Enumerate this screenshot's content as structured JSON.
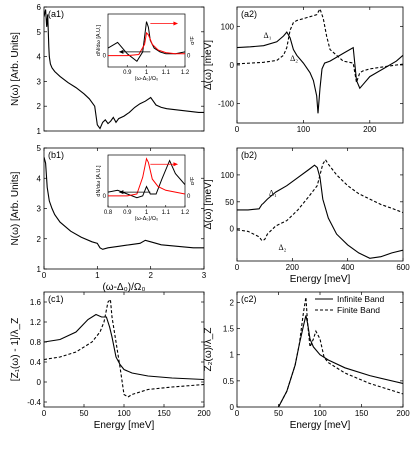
{
  "chart_data": [
    {
      "id": "a1",
      "type": "line",
      "label": "(a1)",
      "ylabel": "N(ω) [Arb. Units]",
      "xlabel": "",
      "xlim": [
        0,
        3
      ],
      "ylim": [
        1,
        6
      ],
      "xticks": [],
      "yticks": [
        1,
        2,
        3,
        4,
        5,
        6
      ],
      "series": [
        {
          "style": "solid",
          "color": "#000000",
          "x": [
            0.0,
            0.03,
            0.05,
            0.07,
            0.09,
            0.1,
            0.12,
            0.15,
            0.2,
            0.3,
            0.45,
            0.6,
            0.75,
            0.85,
            0.95,
            1.0,
            1.05,
            1.1,
            1.15,
            1.2,
            1.25,
            1.3,
            1.35,
            1.4,
            1.5,
            1.6,
            1.7,
            1.8,
            1.9,
            2.0,
            2.05,
            2.1,
            2.2,
            2.3,
            2.5,
            2.7,
            2.9,
            3.0
          ],
          "y": [
            5.6,
            5.9,
            5.2,
            5.7,
            4.4,
            4.0,
            3.7,
            3.55,
            3.4,
            3.2,
            2.95,
            2.75,
            2.5,
            2.3,
            2.0,
            1.25,
            1.1,
            1.35,
            1.45,
            1.3,
            1.4,
            1.55,
            1.35,
            1.5,
            1.6,
            1.75,
            1.95,
            2.1,
            2.2,
            2.35,
            2.2,
            2.05,
            1.95,
            1.9,
            1.85,
            1.8,
            1.75,
            1.75
          ]
        }
      ],
      "inset": {
        "xlabel": "(ω-Δ₀)/Ω₀",
        "ylabel": "dN/dω [A.U.]",
        "ylabel2": "α²F",
        "xlim": [
          0.8,
          1.2
        ],
        "xticks": [
          0.9,
          1.0,
          1.1,
          1.2
        ],
        "yticks": [
          0
        ],
        "series": [
          {
            "color": "#000000",
            "x": [
              0.8,
              0.85,
              0.9,
              0.95,
              0.98,
              1.0,
              1.01,
              1.02,
              1.04,
              1.07,
              1.1,
              1.15,
              1.2
            ],
            "y": [
              0.2,
              0.35,
              0.05,
              -0.15,
              0.1,
              0.9,
              0.75,
              0.4,
              0.2,
              0.1,
              0.05,
              0.05,
              0.1
            ]
          },
          {
            "color": "#ff0000",
            "x": [
              0.8,
              0.9,
              0.96,
              0.99,
              1.0,
              1.01,
              1.03,
              1.06,
              1.1,
              1.15,
              1.2
            ],
            "y": [
              0.0,
              0.0,
              0.03,
              0.3,
              0.6,
              0.55,
              0.3,
              0.15,
              0.08,
              0.05,
              0.05
            ]
          }
        ]
      }
    },
    {
      "id": "b1",
      "type": "line",
      "label": "(b1)",
      "ylabel": "N(ω) [Arb. Units]",
      "xlabel": "(ω-Δ₀)/Ω₀",
      "xlim": [
        0,
        3
      ],
      "ylim": [
        1,
        5
      ],
      "xticks": [
        0,
        1,
        2,
        3
      ],
      "yticks": [
        1,
        2,
        3,
        4,
        5
      ],
      "series": [
        {
          "style": "solid",
          "color": "#000000",
          "x": [
            0.0,
            0.03,
            0.06,
            0.1,
            0.15,
            0.2,
            0.3,
            0.5,
            0.7,
            0.9,
            1.0,
            1.05,
            1.1,
            1.2,
            1.4,
            1.6,
            1.8,
            1.9,
            2.0,
            2.2,
            2.5,
            2.8,
            3.0
          ],
          "y": [
            4.7,
            4.5,
            3.7,
            3.25,
            3.0,
            2.8,
            2.55,
            2.25,
            2.05,
            1.9,
            1.85,
            1.7,
            1.65,
            1.7,
            1.75,
            1.8,
            1.85,
            1.95,
            1.9,
            1.8,
            1.75,
            1.7,
            1.7
          ]
        }
      ],
      "inset": {
        "xlabel": "(ω-Δ₀)/Ω₀",
        "ylabel": "dN/dω [A.U.]",
        "ylabel2": "α²F",
        "xlim": [
          0.8,
          1.2
        ],
        "xticks": [
          0.8,
          0.9,
          1.0,
          1.1,
          1.2
        ],
        "yticks": [
          0
        ],
        "series": [
          {
            "color": "#000000",
            "x": [
              0.8,
              0.85,
              0.9,
              0.95,
              0.98,
              1.0,
              1.02,
              1.05,
              1.08,
              1.12,
              1.15,
              1.2
            ],
            "y": [
              0.1,
              0.15,
              0.05,
              -0.05,
              0.0,
              0.25,
              0.05,
              0.05,
              0.45,
              0.95,
              0.6,
              0.3
            ]
          },
          {
            "color": "#ff0000",
            "x": [
              0.8,
              0.9,
              0.95,
              0.98,
              1.0,
              1.01,
              1.03,
              1.06,
              1.1,
              1.15,
              1.2
            ],
            "y": [
              0.0,
              0.0,
              0.05,
              0.5,
              1.0,
              0.9,
              0.45,
              0.25,
              0.15,
              0.1,
              0.05
            ]
          }
        ]
      }
    },
    {
      "id": "a2",
      "type": "line",
      "label": "(a2)",
      "ylabel": "Δ(ω) [meV]",
      "xlabel": "",
      "xlim": [
        0,
        250
      ],
      "ylim": [
        -150,
        150
      ],
      "xticks": [
        0,
        100,
        200
      ],
      "yticks": [
        -100,
        0,
        100
      ],
      "annotations": [
        {
          "text": "Δ₁",
          "x": 40,
          "y": 70
        },
        {
          "text": "Δ₂",
          "x": 80,
          "y": 10
        }
      ],
      "series": [
        {
          "style": "solid",
          "color": "#000000",
          "x": [
            0,
            20,
            40,
            60,
            70,
            75,
            80,
            85,
            90,
            100,
            110,
            115,
            120,
            122,
            125,
            128,
            132,
            140,
            160,
            175,
            180,
            185,
            190,
            200,
            220,
            240,
            250
          ],
          "y": [
            45,
            47,
            50,
            60,
            75,
            85,
            70,
            40,
            25,
            5,
            -20,
            -40,
            -80,
            -125,
            -60,
            -10,
            5,
            10,
            30,
            45,
            -40,
            -60,
            -50,
            -30,
            -10,
            10,
            25
          ]
        },
        {
          "style": "dashed",
          "color": "#000000",
          "x": [
            0,
            20,
            40,
            60,
            70,
            75,
            80,
            85,
            90,
            100,
            110,
            120,
            125,
            130,
            135,
            140,
            160,
            175,
            180,
            185,
            190,
            200,
            220,
            240,
            250
          ],
          "y": [
            3,
            5,
            7,
            12,
            25,
            45,
            90,
            110,
            115,
            120,
            125,
            130,
            145,
            120,
            75,
            40,
            10,
            5,
            -45,
            -20,
            -15,
            -10,
            -5,
            0,
            2
          ]
        }
      ]
    },
    {
      "id": "b2",
      "type": "line",
      "label": "(b2)",
      "ylabel": "Δ(ω) [meV]",
      "xlabel": "Energy [meV]",
      "xlim": [
        0,
        600
      ],
      "ylim": [
        -60,
        150
      ],
      "xticks": [
        0,
        200,
        400,
        600
      ],
      "yticks": [
        0,
        50,
        100
      ],
      "annotations": [
        {
          "text": "Δ₁",
          "x": 115,
          "y": 62
        },
        {
          "text": "Δ₂",
          "x": 150,
          "y": -40
        }
      ],
      "series": [
        {
          "style": "solid",
          "color": "#000000",
          "x": [
            0,
            40,
            80,
            90,
            95,
            110,
            140,
            180,
            220,
            260,
            280,
            290,
            300,
            310,
            330,
            360,
            400,
            440,
            480,
            520,
            560,
            600
          ],
          "y": [
            35,
            35,
            37,
            45,
            47,
            55,
            68,
            80,
            95,
            110,
            118,
            114,
            95,
            55,
            20,
            -10,
            -30,
            -45,
            -55,
            -52,
            -45,
            -40
          ]
        },
        {
          "style": "dashed",
          "color": "#000000",
          "x": [
            0,
            40,
            80,
            90,
            100,
            110,
            140,
            180,
            220,
            260,
            290,
            300,
            310,
            320,
            330,
            360,
            400,
            440,
            480,
            520,
            560,
            600
          ],
          "y": [
            -2,
            -5,
            -15,
            -22,
            -20,
            -10,
            5,
            15,
            35,
            60,
            80,
            100,
            120,
            128,
            120,
            100,
            80,
            65,
            55,
            45,
            38,
            30
          ]
        }
      ]
    },
    {
      "id": "c1",
      "type": "line",
      "label": "(c1)",
      "ylabel": "[Z₁(ω) - 1]/λ_Z",
      "xlabel": "Energy [meV]",
      "xlim": [
        0,
        200
      ],
      "ylim": [
        -0.5,
        1.8
      ],
      "xticks": [
        0,
        50,
        100,
        150,
        200
      ],
      "yticks": [
        -0.4,
        0,
        0.4,
        0.8,
        1.2,
        1.6
      ],
      "series": [
        {
          "style": "solid",
          "color": "#000000",
          "x": [
            0,
            20,
            40,
            55,
            65,
            72,
            78,
            82,
            85,
            90,
            95,
            100,
            110,
            130,
            160,
            200
          ],
          "y": [
            0.8,
            0.85,
            1.0,
            1.25,
            1.35,
            1.3,
            1.3,
            1.1,
            0.9,
            0.5,
            0.35,
            0.25,
            0.18,
            0.12,
            0.08,
            0.05
          ]
        },
        {
          "style": "dashed",
          "color": "#000000",
          "x": [
            0,
            20,
            40,
            60,
            70,
            75,
            80,
            83,
            85,
            90,
            95,
            100,
            105,
            110,
            130,
            160,
            200
          ],
          "y": [
            0.45,
            0.5,
            0.6,
            0.8,
            1.0,
            1.2,
            1.6,
            1.65,
            1.3,
            0.8,
            0.3,
            -0.25,
            -0.3,
            -0.25,
            -0.15,
            -0.1,
            -0.05
          ]
        }
      ]
    },
    {
      "id": "c2",
      "type": "line",
      "label": "(c2)",
      "ylabel": "Z₂(ω)/λ_Z",
      "xlabel": "Energy [meV]",
      "xlim": [
        0,
        200
      ],
      "ylim": [
        0,
        2.2
      ],
      "xticks": [
        0,
        50,
        100,
        150,
        200
      ],
      "yticks": [
        0,
        0.5,
        1,
        1.5,
        2
      ],
      "legend": {
        "position": "top-right",
        "entries": [
          "Infinite Band",
          "Finite Band"
        ]
      },
      "series": [
        {
          "name": "Infinite Band",
          "style": "solid",
          "color": "#000000",
          "x": [
            50,
            60,
            70,
            75,
            80,
            83,
            85,
            88,
            92,
            100,
            110,
            130,
            160,
            200
          ],
          "y": [
            0,
            0.3,
            0.8,
            1.2,
            1.55,
            1.75,
            1.6,
            1.3,
            1.15,
            1.0,
            0.9,
            0.75,
            0.6,
            0.45
          ]
        },
        {
          "name": "Finite Band",
          "style": "dashed",
          "color": "#000000",
          "x": [
            50,
            60,
            70,
            75,
            80,
            83,
            85,
            88,
            92,
            95,
            100,
            105,
            110,
            130,
            160,
            200
          ],
          "y": [
            0,
            0.3,
            0.8,
            1.2,
            1.8,
            2.1,
            1.6,
            1.15,
            1.3,
            1.45,
            1.3,
            0.95,
            0.85,
            0.65,
            0.45,
            0.25
          ]
        }
      ]
    }
  ]
}
